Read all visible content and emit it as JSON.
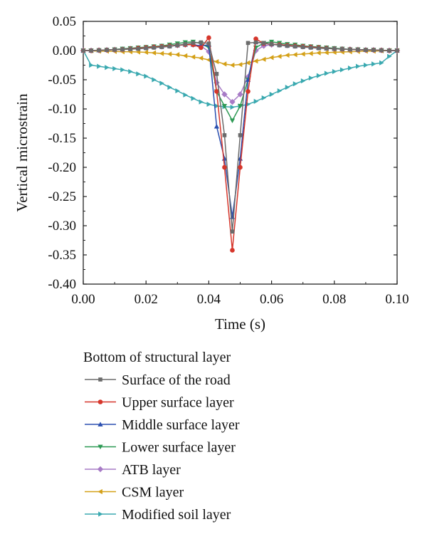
{
  "chart_data": {
    "type": "line",
    "xlabel": "Time (s)",
    "ylabel": "Vertical microstrain",
    "xlim": [
      0.0,
      0.1
    ],
    "ylim": [
      -0.4,
      0.05
    ],
    "x_ticks": [
      "0.00",
      "0.02",
      "0.04",
      "0.06",
      "0.08",
      "0.10"
    ],
    "y_ticks": [
      "0.05",
      "0.00",
      "-0.05",
      "-0.10",
      "-0.15",
      "-0.20",
      "-0.25",
      "-0.30",
      "-0.35",
      "-0.40"
    ],
    "legend_title": "Bottom of structural layer",
    "legend_position": "below",
    "series": [
      {
        "name": "Surface of the road",
        "color": "#6b6b6b",
        "marker": "square",
        "points": [
          [
            0,
            0
          ],
          [
            0.0025,
            0
          ],
          [
            0.005,
            0.0005
          ],
          [
            0.0075,
            0.001
          ],
          [
            0.01,
            0.0015
          ],
          [
            0.0125,
            0.002
          ],
          [
            0.015,
            0.0025
          ],
          [
            0.0175,
            0.003
          ],
          [
            0.02,
            0.004
          ],
          [
            0.0225,
            0.005
          ],
          [
            0.025,
            0.006
          ],
          [
            0.0275,
            0.007
          ],
          [
            0.03,
            0.009
          ],
          [
            0.0325,
            0.011
          ],
          [
            0.035,
            0.013
          ],
          [
            0.0375,
            0.014
          ],
          [
            0.04,
            0.012
          ],
          [
            0.0425,
            -0.04
          ],
          [
            0.045,
            -0.145
          ],
          [
            0.0475,
            -0.31
          ],
          [
            0.05,
            -0.145
          ],
          [
            0.0525,
            0.013
          ],
          [
            0.055,
            0.014
          ],
          [
            0.0575,
            0.013
          ],
          [
            0.06,
            0.011
          ],
          [
            0.0625,
            0.009
          ],
          [
            0.065,
            0.008
          ],
          [
            0.0675,
            0.007
          ],
          [
            0.07,
            0.006
          ],
          [
            0.0725,
            0.005
          ],
          [
            0.075,
            0.004
          ],
          [
            0.0775,
            0.0035
          ],
          [
            0.08,
            0.003
          ],
          [
            0.0825,
            0.0025
          ],
          [
            0.085,
            0.002
          ],
          [
            0.0875,
            0.0015
          ],
          [
            0.09,
            0.001
          ],
          [
            0.0925,
            0.001
          ],
          [
            0.095,
            0.0005
          ],
          [
            0.0975,
            0
          ],
          [
            0.1,
            0
          ]
        ]
      },
      {
        "name": "Upper surface layer",
        "color": "#d6362b",
        "marker": "circle",
        "points": [
          [
            0,
            0
          ],
          [
            0.0025,
            0
          ],
          [
            0.005,
            0.0005
          ],
          [
            0.0075,
            0.001
          ],
          [
            0.01,
            0.0015
          ],
          [
            0.0125,
            0.002
          ],
          [
            0.015,
            0.003
          ],
          [
            0.0175,
            0.004
          ],
          [
            0.02,
            0.005
          ],
          [
            0.0225,
            0.006
          ],
          [
            0.025,
            0.007
          ],
          [
            0.0275,
            0.008
          ],
          [
            0.03,
            0.009
          ],
          [
            0.0325,
            0.01
          ],
          [
            0.035,
            0.01
          ],
          [
            0.0375,
            0.005
          ],
          [
            0.04,
            0.022
          ],
          [
            0.0425,
            -0.07
          ],
          [
            0.045,
            -0.2
          ],
          [
            0.0475,
            -0.342
          ],
          [
            0.05,
            -0.2
          ],
          [
            0.0525,
            -0.07
          ],
          [
            0.055,
            0.02
          ],
          [
            0.0575,
            0.012
          ],
          [
            0.06,
            0.011
          ],
          [
            0.0625,
            0.01
          ],
          [
            0.065,
            0.009
          ],
          [
            0.0675,
            0.008
          ],
          [
            0.07,
            0.007
          ],
          [
            0.0725,
            0.006
          ],
          [
            0.075,
            0.005
          ],
          [
            0.0775,
            0.004
          ],
          [
            0.08,
            0.003
          ],
          [
            0.0825,
            0.0025
          ],
          [
            0.085,
            0.002
          ],
          [
            0.0875,
            0.0015
          ],
          [
            0.09,
            0.001
          ],
          [
            0.0925,
            0.001
          ],
          [
            0.095,
            0.0005
          ],
          [
            0.0975,
            0
          ],
          [
            0.1,
            0
          ]
        ]
      },
      {
        "name": "Middle surface layer",
        "color": "#2a4fb0",
        "marker": "triangle-up",
        "points": [
          [
            0,
            0
          ],
          [
            0.0025,
            0
          ],
          [
            0.005,
            0.0005
          ],
          [
            0.0075,
            0.001
          ],
          [
            0.01,
            0.0015
          ],
          [
            0.0125,
            0.002
          ],
          [
            0.015,
            0.003
          ],
          [
            0.0175,
            0.004
          ],
          [
            0.02,
            0.005
          ],
          [
            0.0225,
            0.006
          ],
          [
            0.025,
            0.007
          ],
          [
            0.0275,
            0.008
          ],
          [
            0.03,
            0.009
          ],
          [
            0.0325,
            0.01
          ],
          [
            0.035,
            0.01
          ],
          [
            0.0375,
            0.008
          ],
          [
            0.04,
            0.01
          ],
          [
            0.0425,
            -0.13
          ],
          [
            0.045,
            -0.185
          ],
          [
            0.0475,
            -0.285
          ],
          [
            0.05,
            -0.185
          ],
          [
            0.0525,
            -0.05
          ],
          [
            0.055,
            0.015
          ],
          [
            0.0575,
            0.012
          ],
          [
            0.06,
            0.011
          ],
          [
            0.0625,
            0.01
          ],
          [
            0.065,
            0.009
          ],
          [
            0.0675,
            0.008
          ],
          [
            0.07,
            0.007
          ],
          [
            0.0725,
            0.006
          ],
          [
            0.075,
            0.005
          ],
          [
            0.0775,
            0.004
          ],
          [
            0.08,
            0.003
          ],
          [
            0.0825,
            0.0025
          ],
          [
            0.085,
            0.002
          ],
          [
            0.0875,
            0.0015
          ],
          [
            0.09,
            0.001
          ],
          [
            0.0925,
            0.001
          ],
          [
            0.095,
            0.0005
          ],
          [
            0.0975,
            0
          ],
          [
            0.1,
            0
          ]
        ]
      },
      {
        "name": "Lower surface layer",
        "color": "#2e9a55",
        "marker": "triangle-down",
        "points": [
          [
            0,
            0
          ],
          [
            0.0025,
            0
          ],
          [
            0.005,
            0.0005
          ],
          [
            0.0075,
            0.001
          ],
          [
            0.01,
            0.002
          ],
          [
            0.0125,
            0.003
          ],
          [
            0.015,
            0.004
          ],
          [
            0.0175,
            0.005
          ],
          [
            0.02,
            0.006
          ],
          [
            0.0225,
            0.007
          ],
          [
            0.025,
            0.008
          ],
          [
            0.0275,
            0.01
          ],
          [
            0.03,
            0.012
          ],
          [
            0.0325,
            0.014
          ],
          [
            0.035,
            0.015
          ],
          [
            0.0375,
            0.012
          ],
          [
            0.04,
            0.005
          ],
          [
            0.0425,
            -0.07
          ],
          [
            0.045,
            -0.095
          ],
          [
            0.0475,
            -0.12
          ],
          [
            0.05,
            -0.095
          ],
          [
            0.0525,
            -0.05
          ],
          [
            0.055,
            0.005
          ],
          [
            0.0575,
            0.013
          ],
          [
            0.06,
            0.015
          ],
          [
            0.0625,
            0.013
          ],
          [
            0.065,
            0.011
          ],
          [
            0.0675,
            0.01
          ],
          [
            0.07,
            0.008
          ],
          [
            0.0725,
            0.007
          ],
          [
            0.075,
            0.006
          ],
          [
            0.0775,
            0.005
          ],
          [
            0.08,
            0.004
          ],
          [
            0.0825,
            0.003
          ],
          [
            0.085,
            0.002
          ],
          [
            0.0875,
            0.002
          ],
          [
            0.09,
            0.001
          ],
          [
            0.0925,
            0.001
          ],
          [
            0.095,
            0.0005
          ],
          [
            0.0975,
            0
          ],
          [
            0.1,
            0
          ]
        ]
      },
      {
        "name": "ATB layer",
        "color": "#a77bc6",
        "marker": "diamond",
        "points": [
          [
            0,
            0
          ],
          [
            0.0025,
            0
          ],
          [
            0.005,
            0.0005
          ],
          [
            0.0075,
            0.001
          ],
          [
            0.01,
            0.0015
          ],
          [
            0.0125,
            0.002
          ],
          [
            0.015,
            0.003
          ],
          [
            0.0175,
            0.004
          ],
          [
            0.02,
            0.005
          ],
          [
            0.0225,
            0.006
          ],
          [
            0.025,
            0.007
          ],
          [
            0.0275,
            0.008
          ],
          [
            0.03,
            0.009
          ],
          [
            0.0325,
            0.01
          ],
          [
            0.035,
            0.01
          ],
          [
            0.0375,
            0.008
          ],
          [
            0.04,
            -0.002
          ],
          [
            0.0425,
            -0.055
          ],
          [
            0.045,
            -0.075
          ],
          [
            0.0475,
            -0.088
          ],
          [
            0.05,
            -0.075
          ],
          [
            0.0525,
            -0.045
          ],
          [
            0.055,
            0.0
          ],
          [
            0.0575,
            0.008
          ],
          [
            0.06,
            0.01
          ],
          [
            0.0625,
            0.01
          ],
          [
            0.065,
            0.009
          ],
          [
            0.0675,
            0.008
          ],
          [
            0.07,
            0.007
          ],
          [
            0.0725,
            0.006
          ],
          [
            0.075,
            0.005
          ],
          [
            0.0775,
            0.004
          ],
          [
            0.08,
            0.003
          ],
          [
            0.0825,
            0.0025
          ],
          [
            0.085,
            0.002
          ],
          [
            0.0875,
            0.0015
          ],
          [
            0.09,
            0.001
          ],
          [
            0.0925,
            0.001
          ],
          [
            0.095,
            0.0005
          ],
          [
            0.0975,
            0
          ],
          [
            0.1,
            0
          ]
        ]
      },
      {
        "name": "CSM layer",
        "color": "#d4a017",
        "marker": "triangle-left",
        "points": [
          [
            0,
            0
          ],
          [
            0.0025,
            -0.0005
          ],
          [
            0.005,
            -0.001
          ],
          [
            0.0075,
            -0.001
          ],
          [
            0.01,
            -0.0015
          ],
          [
            0.0125,
            -0.002
          ],
          [
            0.015,
            -0.002
          ],
          [
            0.0175,
            -0.0025
          ],
          [
            0.02,
            -0.003
          ],
          [
            0.0225,
            -0.004
          ],
          [
            0.025,
            -0.005
          ],
          [
            0.0275,
            -0.006
          ],
          [
            0.03,
            -0.007
          ],
          [
            0.0325,
            -0.009
          ],
          [
            0.035,
            -0.011
          ],
          [
            0.0375,
            -0.013
          ],
          [
            0.04,
            -0.016
          ],
          [
            0.0425,
            -0.019
          ],
          [
            0.045,
            -0.023
          ],
          [
            0.0475,
            -0.025
          ],
          [
            0.05,
            -0.024
          ],
          [
            0.0525,
            -0.021
          ],
          [
            0.055,
            -0.018
          ],
          [
            0.0575,
            -0.015
          ],
          [
            0.06,
            -0.012
          ],
          [
            0.0625,
            -0.01
          ],
          [
            0.065,
            -0.008
          ],
          [
            0.0675,
            -0.007
          ],
          [
            0.07,
            -0.006
          ],
          [
            0.0725,
            -0.005
          ],
          [
            0.075,
            -0.004
          ],
          [
            0.0775,
            -0.0035
          ],
          [
            0.08,
            -0.003
          ],
          [
            0.0825,
            -0.0025
          ],
          [
            0.085,
            -0.002
          ],
          [
            0.0875,
            -0.0015
          ],
          [
            0.09,
            -0.001
          ],
          [
            0.0925,
            -0.001
          ],
          [
            0.095,
            -0.0005
          ],
          [
            0.0975,
            0
          ],
          [
            0.1,
            0
          ]
        ]
      },
      {
        "name": "Modified soil layer",
        "color": "#3aa9b0",
        "marker": "triangle-right",
        "points": [
          [
            0,
            0
          ],
          [
            0.0025,
            -0.025
          ],
          [
            0.005,
            -0.027
          ],
          [
            0.0075,
            -0.029
          ],
          [
            0.01,
            -0.031
          ],
          [
            0.0125,
            -0.033
          ],
          [
            0.015,
            -0.036
          ],
          [
            0.0175,
            -0.04
          ],
          [
            0.02,
            -0.044
          ],
          [
            0.0225,
            -0.05
          ],
          [
            0.025,
            -0.056
          ],
          [
            0.0275,
            -0.063
          ],
          [
            0.03,
            -0.069
          ],
          [
            0.0325,
            -0.076
          ],
          [
            0.035,
            -0.082
          ],
          [
            0.0375,
            -0.088
          ],
          [
            0.04,
            -0.092
          ],
          [
            0.0425,
            -0.095
          ],
          [
            0.045,
            -0.096
          ],
          [
            0.0475,
            -0.097
          ],
          [
            0.05,
            -0.095
          ],
          [
            0.0525,
            -0.092
          ],
          [
            0.055,
            -0.087
          ],
          [
            0.0575,
            -0.081
          ],
          [
            0.06,
            -0.075
          ],
          [
            0.0625,
            -0.069
          ],
          [
            0.065,
            -0.063
          ],
          [
            0.0675,
            -0.057
          ],
          [
            0.07,
            -0.052
          ],
          [
            0.0725,
            -0.047
          ],
          [
            0.075,
            -0.043
          ],
          [
            0.0775,
            -0.039
          ],
          [
            0.08,
            -0.036
          ],
          [
            0.0825,
            -0.033
          ],
          [
            0.085,
            -0.03
          ],
          [
            0.0875,
            -0.027
          ],
          [
            0.09,
            -0.025
          ],
          [
            0.0925,
            -0.023
          ],
          [
            0.095,
            -0.021
          ],
          [
            0.0975,
            -0.01
          ],
          [
            0.1,
            0
          ]
        ]
      }
    ]
  }
}
